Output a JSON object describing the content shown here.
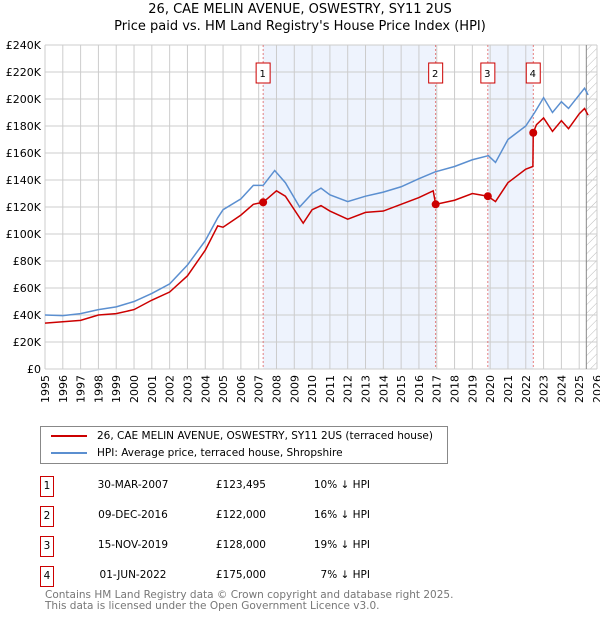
{
  "chart_data": {
    "type": "line",
    "title": "26, CAE MELIN AVENUE, OSWESTRY, SY11 2US",
    "subtitle": "Price paid vs. HM Land Registry's House Price Index (HPI)",
    "xlim": [
      1995,
      2026
    ],
    "ylim": [
      0,
      240000
    ],
    "x_ticks": [
      "1995",
      "1996",
      "1997",
      "1998",
      "1999",
      "2000",
      "2001",
      "2002",
      "2003",
      "2004",
      "2005",
      "2006",
      "2007",
      "2008",
      "2009",
      "2010",
      "2011",
      "2012",
      "2013",
      "2014",
      "2015",
      "2016",
      "2017",
      "2018",
      "2019",
      "2020",
      "2021",
      "2022",
      "2023",
      "2024",
      "2025",
      "2026"
    ],
    "y_ticks": [
      "£0",
      "£20K",
      "£40K",
      "£60K",
      "£80K",
      "£100K",
      "£120K",
      "£140K",
      "£160K",
      "£180K",
      "£200K",
      "£220K",
      "£240K"
    ],
    "grid": true,
    "shaded_ranges": [
      [
        2007.25,
        2016.94
      ],
      [
        2019.87,
        2022.42
      ]
    ],
    "forecast_hatch_from": 2025.4,
    "series": [
      {
        "name": "26, CAE MELIN AVENUE, OSWESTRY, SY11 2US (terraced house)",
        "color": "#cc0000",
        "points": [
          [
            1995,
            34000
          ],
          [
            1996,
            35000
          ],
          [
            1997,
            36000
          ],
          [
            1998,
            40000
          ],
          [
            1999,
            41000
          ],
          [
            2000,
            44000
          ],
          [
            2001,
            51000
          ],
          [
            2002,
            57000
          ],
          [
            2003,
            69000
          ],
          [
            2004,
            88000
          ],
          [
            2004.7,
            106000
          ],
          [
            2005,
            105000
          ],
          [
            2006,
            114000
          ],
          [
            2006.7,
            122000
          ],
          [
            2007.25,
            123495
          ],
          [
            2008,
            132000
          ],
          [
            2008.5,
            128000
          ],
          [
            2009.5,
            108000
          ],
          [
            2010,
            118000
          ],
          [
            2010.5,
            121000
          ],
          [
            2011,
            117000
          ],
          [
            2012,
            111000
          ],
          [
            2013,
            116000
          ],
          [
            2014,
            117000
          ],
          [
            2015,
            122000
          ],
          [
            2016,
            127000
          ],
          [
            2016.8,
            132000
          ],
          [
            2016.94,
            122000
          ],
          [
            2018,
            125000
          ],
          [
            2019,
            130000
          ],
          [
            2019.87,
            128000
          ],
          [
            2020.3,
            124000
          ],
          [
            2021,
            138000
          ],
          [
            2022,
            148000
          ],
          [
            2022.4,
            150000
          ],
          [
            2022.42,
            175000
          ],
          [
            2022.6,
            181000
          ],
          [
            2023,
            186000
          ],
          [
            2023.5,
            176000
          ],
          [
            2024,
            184000
          ],
          [
            2024.4,
            178000
          ],
          [
            2025,
            189000
          ],
          [
            2025.3,
            193000
          ],
          [
            2025.5,
            188000
          ]
        ]
      },
      {
        "name": "HPI: Average price, terraced house, Shropshire",
        "color": "#5b8fd0",
        "points": [
          [
            1995,
            40000
          ],
          [
            1996,
            39500
          ],
          [
            1997,
            41000
          ],
          [
            1998,
            44000
          ],
          [
            1999,
            46000
          ],
          [
            2000,
            50000
          ],
          [
            2001,
            56000
          ],
          [
            2002,
            63000
          ],
          [
            2003,
            77000
          ],
          [
            2004,
            95000
          ],
          [
            2004.7,
            112000
          ],
          [
            2005,
            118000
          ],
          [
            2006,
            126000
          ],
          [
            2006.7,
            136000
          ],
          [
            2007.25,
            136000
          ],
          [
            2007.9,
            147000
          ],
          [
            2008.5,
            138000
          ],
          [
            2009.3,
            120000
          ],
          [
            2010,
            130000
          ],
          [
            2010.5,
            134000
          ],
          [
            2011,
            129000
          ],
          [
            2012,
            124000
          ],
          [
            2013,
            128000
          ],
          [
            2014,
            131000
          ],
          [
            2015,
            135000
          ],
          [
            2016,
            141000
          ],
          [
            2016.9,
            146000
          ],
          [
            2018,
            150000
          ],
          [
            2019,
            155000
          ],
          [
            2019.9,
            158000
          ],
          [
            2020.3,
            153000
          ],
          [
            2021,
            170000
          ],
          [
            2022,
            180000
          ],
          [
            2022.5,
            190000
          ],
          [
            2023,
            201000
          ],
          [
            2023.5,
            190000
          ],
          [
            2024,
            198000
          ],
          [
            2024.4,
            193000
          ],
          [
            2025,
            203000
          ],
          [
            2025.3,
            208000
          ],
          [
            2025.5,
            203000
          ]
        ]
      }
    ],
    "sales": [
      {
        "id": "1",
        "date": "30-MAR-2007",
        "x": 2007.25,
        "price": "£123,495",
        "value": 123495,
        "hpi": "10% ↓ HPI"
      },
      {
        "id": "2",
        "date": "09-DEC-2016",
        "x": 2016.94,
        "price": "£122,000",
        "value": 122000,
        "hpi": "16% ↓ HPI"
      },
      {
        "id": "3",
        "date": "15-NOV-2019",
        "x": 2019.87,
        "price": "£128,000",
        "value": 128000,
        "hpi": "19% ↓ HPI"
      },
      {
        "id": "4",
        "date": "01-JUN-2022",
        "x": 2022.42,
        "price": "£175,000",
        "value": 175000,
        "hpi": "7% ↓ HPI"
      }
    ]
  },
  "footer": [
    "Contains HM Land Registry data © Crown copyright and database right 2025.",
    "This data is licensed under the Open Government Licence v3.0."
  ]
}
